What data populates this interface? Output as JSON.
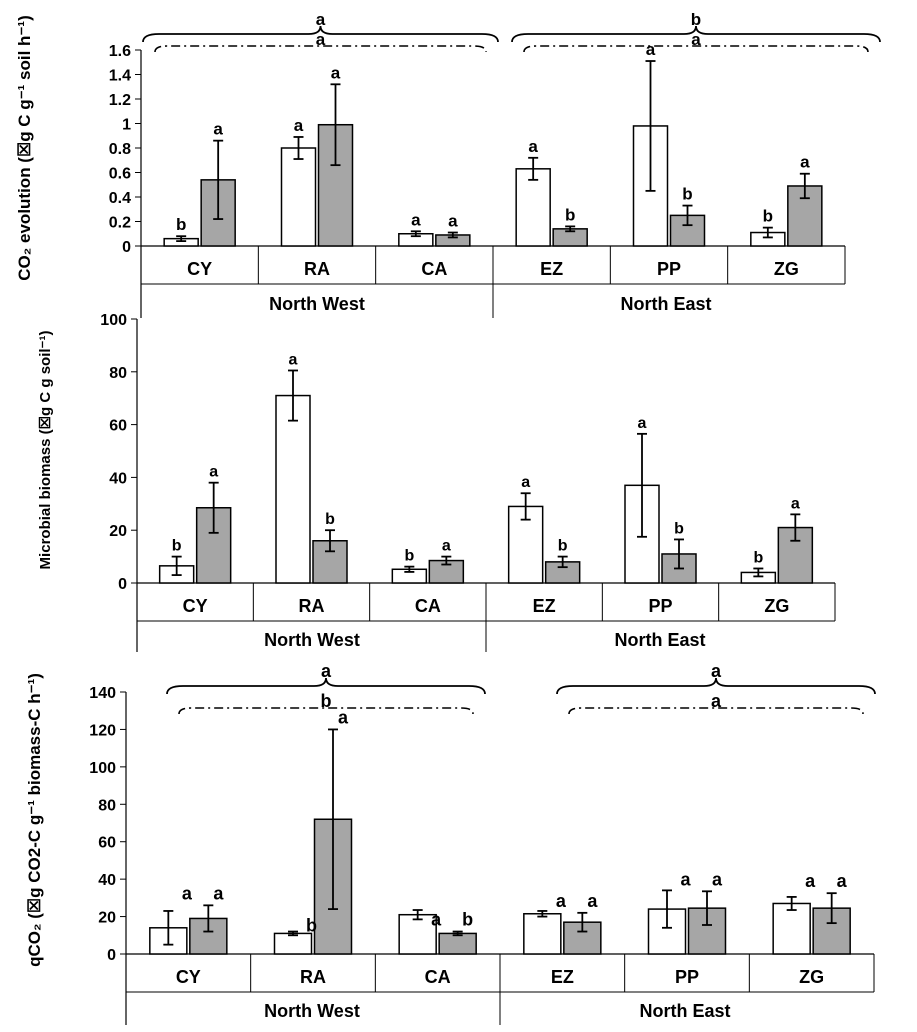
{
  "colors": {
    "white_bar": "#ffffff",
    "gray_bar": "#a6a6a6",
    "stroke": "#000000"
  },
  "chart_data": [
    {
      "type": "bar",
      "ylabel": "CO₂ evolution (☒g C g⁻¹ soil h⁻¹)",
      "ylim": [
        0,
        1.6
      ],
      "yticks": [
        "0",
        "0.2",
        "0.4",
        "0.6",
        "0.8",
        "1",
        "1.2",
        "1.4",
        "1.6"
      ],
      "categories": [
        "CY",
        "RA",
        "CA",
        "EZ",
        "PP",
        "ZG"
      ],
      "groups": [
        {
          "label": "North West",
          "members": [
            "CY",
            "RA",
            "CA"
          ]
        },
        {
          "label": "North East",
          "members": [
            "EZ",
            "PP",
            "ZG"
          ]
        }
      ],
      "series": [
        {
          "fill": "white",
          "values": [
            0.06,
            0.8,
            0.1,
            0.63,
            0.98,
            0.11
          ],
          "err": [
            0.02,
            0.09,
            0.02,
            0.09,
            0.53,
            0.04
          ],
          "letters": [
            "b",
            "a",
            "a",
            "a",
            "a",
            "b"
          ]
        },
        {
          "fill": "gray",
          "values": [
            0.54,
            0.99,
            0.09,
            0.14,
            0.25,
            0.49
          ],
          "err": [
            0.32,
            0.33,
            0.02,
            0.02,
            0.08,
            0.1
          ],
          "letters": [
            "a",
            "a",
            "a",
            "b",
            "b",
            "a"
          ]
        }
      ],
      "braces": [
        {
          "solid": "a",
          "dashed": "a"
        },
        {
          "solid": "b",
          "dashed": "a"
        }
      ]
    },
    {
      "type": "bar",
      "ylabel": "Microbial biomass (☒g C g soil⁻¹)",
      "ylim": [
        0,
        100
      ],
      "yticks": [
        "0",
        "20",
        "40",
        "60",
        "80",
        "100"
      ],
      "categories": [
        "CY",
        "RA",
        "CA",
        "EZ",
        "PP",
        "ZG"
      ],
      "groups": [
        {
          "label": "North West",
          "members": [
            "CY",
            "RA",
            "CA"
          ]
        },
        {
          "label": "North East",
          "members": [
            "EZ",
            "PP",
            "ZG"
          ]
        }
      ],
      "series": [
        {
          "fill": "white",
          "values": [
            6.5,
            71,
            5.2,
            29,
            37,
            4
          ],
          "err": [
            3.5,
            9.5,
            1,
            5,
            19.5,
            1.5
          ],
          "letters": [
            "b",
            "a",
            "b",
            "a",
            "a",
            "b"
          ]
        },
        {
          "fill": "gray",
          "values": [
            28.5,
            16,
            8.5,
            8,
            11,
            21
          ],
          "err": [
            9.5,
            4,
            1.5,
            2,
            5.5,
            5
          ],
          "letters": [
            "a",
            "b",
            "a",
            "b",
            "b",
            "a"
          ]
        }
      ]
    },
    {
      "type": "bar",
      "ylabel": "qCO₂ (☒g CO2-C g⁻¹ biomass-C h⁻¹)",
      "ylim": [
        0,
        140
      ],
      "yticks": [
        "0",
        "20",
        "40",
        "60",
        "80",
        "100",
        "120",
        "140"
      ],
      "categories": [
        "CY",
        "RA",
        "CA",
        "EZ",
        "PP",
        "ZG"
      ],
      "groups": [
        {
          "label": "North West",
          "members": [
            "CY",
            "RA",
            "CA"
          ]
        },
        {
          "label": "North East",
          "members": [
            "EZ",
            "PP",
            "ZG"
          ]
        }
      ],
      "series": [
        {
          "fill": "white",
          "values": [
            14,
            11,
            21,
            21.5,
            24,
            27
          ],
          "err": [
            9,
            1,
            2.5,
            1.5,
            10,
            3.5
          ],
          "letters": [
            "",
            "",
            "",
            "",
            "",
            ""
          ]
        },
        {
          "fill": "gray",
          "values": [
            19,
            72,
            11,
            17,
            24.5,
            24.5
          ],
          "err": [
            7,
            48,
            1,
            5,
            9,
            8
          ],
          "letters": [
            "a",
            "a",
            "b",
            "a",
            "a",
            "a"
          ]
        }
      ],
      "white_letters": [
        "a",
        "b",
        "a",
        "a",
        "a",
        "a"
      ],
      "braces": [
        {
          "solid": "a",
          "dashed": "b"
        },
        {
          "solid": "a",
          "dashed": "a"
        }
      ]
    }
  ]
}
